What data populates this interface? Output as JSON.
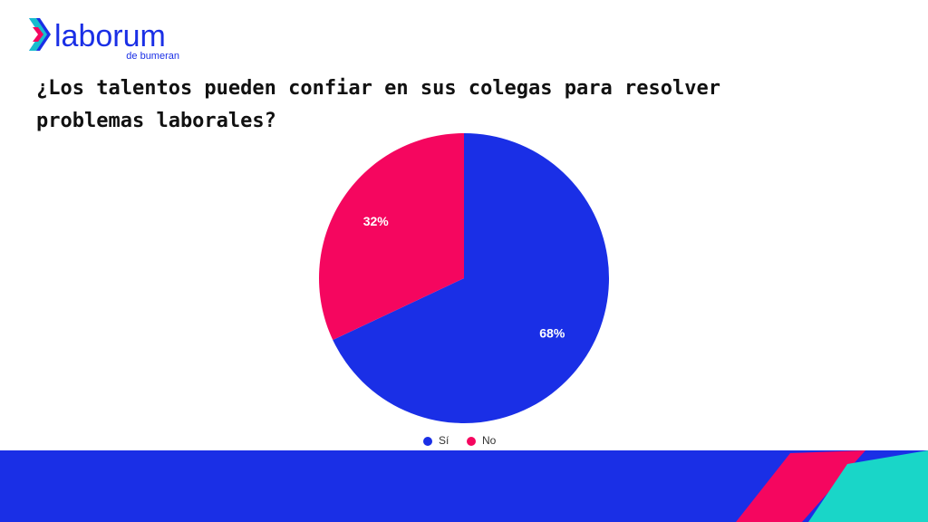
{
  "logo": {
    "name": "laborum",
    "tagline": "de bumeran"
  },
  "chart_data": {
    "type": "pie",
    "title": "¿Los talentos pueden confiar en sus colegas para resolver problemas laborales?",
    "categories": [
      "Sí",
      "No"
    ],
    "values": [
      68,
      32
    ],
    "value_labels": [
      "68%",
      "32%"
    ],
    "colors": [
      "#1a2fe6",
      "#f5065f"
    ],
    "legend": "bottom"
  }
}
